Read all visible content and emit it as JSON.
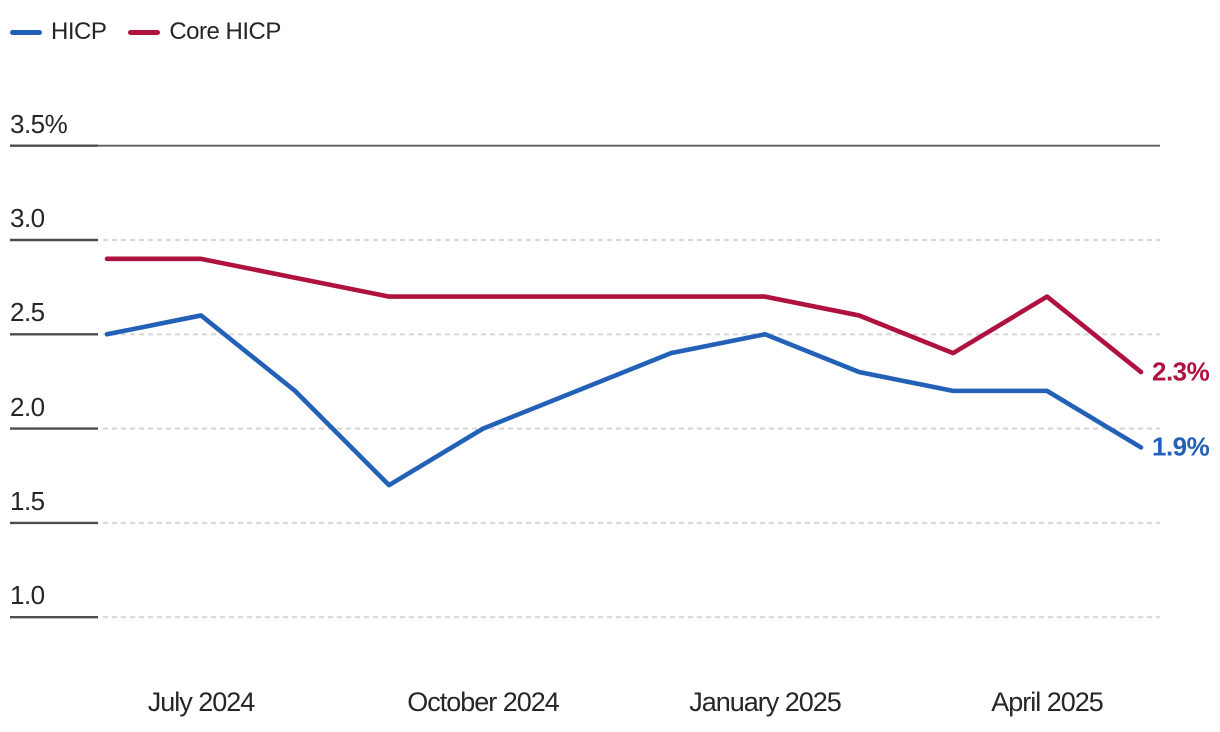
{
  "legend": {
    "items": [
      {
        "label": "HICP",
        "color": "#2361b7"
      },
      {
        "label": "Core HICP",
        "color": "#b01240"
      }
    ]
  },
  "chart_data": {
    "type": "line",
    "x": [
      "Jun 2024",
      "Jul 2024",
      "Aug 2024",
      "Sep 2024",
      "Oct 2024",
      "Nov 2024",
      "Dec 2024",
      "Jan 2025",
      "Feb 2025",
      "Mar 2025",
      "Apr 2025",
      "May 2025"
    ],
    "series": [
      {
        "name": "HICP",
        "color": "#2361b7",
        "values": [
          2.5,
          2.6,
          2.2,
          1.7,
          2.0,
          2.2,
          2.4,
          2.5,
          2.3,
          2.2,
          2.2,
          1.9
        ],
        "end_label": "1.9%"
      },
      {
        "name": "Core HICP",
        "color": "#b01240",
        "values": [
          2.9,
          2.9,
          2.8,
          2.7,
          2.7,
          2.7,
          2.7,
          2.7,
          2.6,
          2.4,
          2.7,
          2.3
        ],
        "end_label": "2.3%"
      }
    ],
    "y_ticks": [
      {
        "label": "3.5%",
        "value": 3.5
      },
      {
        "label": "3.0",
        "value": 3.0
      },
      {
        "label": "2.5",
        "value": 2.5
      },
      {
        "label": "2.0",
        "value": 2.0
      },
      {
        "label": "1.5",
        "value": 1.5
      },
      {
        "label": "1.0",
        "value": 1.0
      }
    ],
    "x_ticks": [
      {
        "label": "July 2024",
        "index": 1
      },
      {
        "label": "October 2024",
        "index": 4
      },
      {
        "label": "January 2025",
        "index": 7
      },
      {
        "label": "April 2025",
        "index": 10
      }
    ],
    "ylim": [
      1.0,
      3.5
    ],
    "unit": "%",
    "grid": "horizontal dashed, top line solid",
    "legend_position": "top-left"
  },
  "colors": {
    "text": "#262626",
    "axis_tick": "#4d4d4d",
    "top_line": "#5f5f5f",
    "grid_dash": "#d9d9d9",
    "background": "#ffffff"
  }
}
